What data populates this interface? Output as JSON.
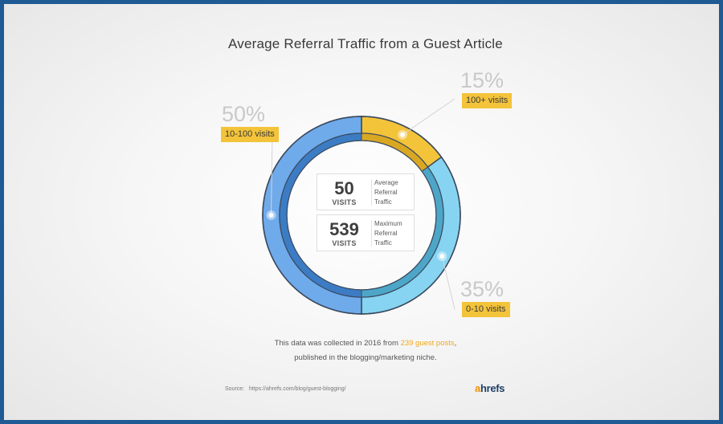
{
  "title": "Average Referral Traffic from a Guest Article",
  "chart_data": {
    "type": "pie",
    "variant": "donut",
    "slices": [
      {
        "label": "100+ visits",
        "percent_text": "15%",
        "value": 15,
        "color": "#f3c33a",
        "inner_color": "#d9a722"
      },
      {
        "label": "0-10 visits",
        "percent_text": "35%",
        "value": 35,
        "color": "#86d4f1",
        "inner_color": "#4da6c8"
      },
      {
        "label": "10-100 visits",
        "percent_text": "50%",
        "value": 50,
        "color": "#6faaeb",
        "inner_color": "#3c7cc4"
      }
    ]
  },
  "stats": [
    {
      "number": "50",
      "unit": "VISITS",
      "desc_lines": [
        "Average",
        "Referral",
        "Traffic"
      ]
    },
    {
      "number": "539",
      "unit": "VISITS",
      "desc_lines": [
        "Maximum",
        "Referral",
        "Traffic"
      ]
    }
  ],
  "note": {
    "line1_pre": "This data was collected in 2016 from ",
    "line1_highlight": "239 guest posts",
    "line1_post": ",",
    "line2": "published in the blogging/marketing niche."
  },
  "source": {
    "label": "Source:",
    "url": "https://ahrefs.com/blog/guest-blogging/"
  },
  "logo": {
    "first": "a",
    "rest": "hrefs"
  }
}
